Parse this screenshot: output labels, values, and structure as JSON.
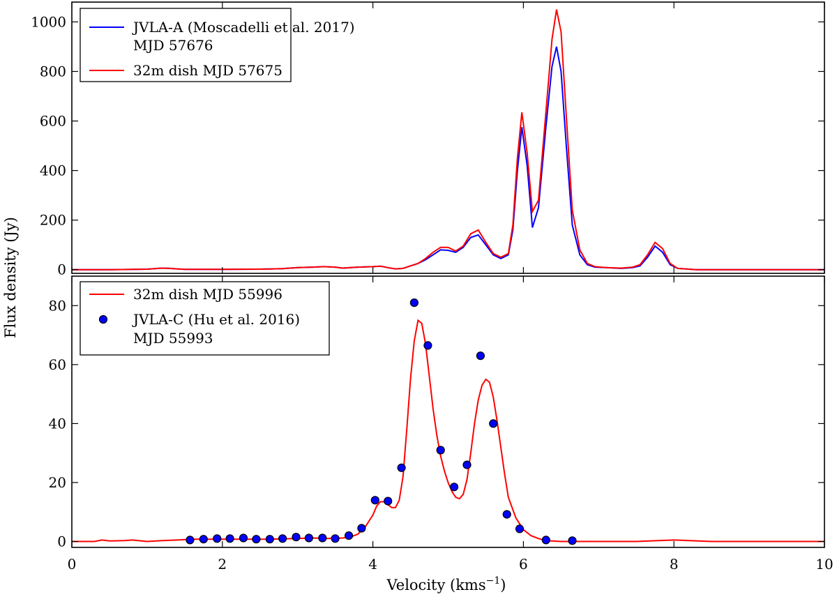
{
  "chart_data": [
    {
      "type": "line",
      "panel": "top",
      "xlim": [
        0,
        10
      ],
      "ylim": [
        -15,
        1080
      ],
      "yticks": [
        0,
        200,
        400,
        600,
        800,
        1000
      ],
      "ylabel": "Flux density (Jy)",
      "legend_position": "top-left",
      "series": [
        {
          "name": "JVLA-A (Moscadelli et al. 2017)",
          "name_line2": "MJD 57676",
          "color": "#0000ff",
          "marker": "line",
          "x": [
            0,
            0.5,
            1.0,
            1.1,
            1.2,
            1.3,
            1.4,
            1.5,
            2.0,
            2.5,
            2.8,
            3.0,
            3.2,
            3.35,
            3.5,
            3.6,
            3.8,
            4.0,
            4.1,
            4.2,
            4.3,
            4.4,
            4.5,
            4.6,
            4.7,
            4.8,
            4.9,
            5.0,
            5.1,
            5.2,
            5.3,
            5.4,
            5.5,
            5.6,
            5.7,
            5.8,
            5.86,
            5.92,
            5.98,
            6.05,
            6.12,
            6.2,
            6.3,
            6.38,
            6.44,
            6.5,
            6.57,
            6.65,
            6.75,
            6.85,
            6.95,
            7.1,
            7.3,
            7.45,
            7.55,
            7.65,
            7.75,
            7.85,
            7.95,
            8.05,
            8.3,
            9.0,
            10.0
          ],
          "y": [
            0,
            0,
            2,
            4,
            6,
            5,
            3,
            1,
            1,
            2,
            4,
            8,
            10,
            12,
            10,
            6,
            10,
            12,
            14,
            8,
            3,
            5,
            15,
            25,
            40,
            60,
            80,
            78,
            70,
            90,
            130,
            140,
            100,
            60,
            45,
            60,
            160,
            400,
            575,
            420,
            170,
            250,
            580,
            820,
            900,
            800,
            500,
            180,
            60,
            20,
            10,
            8,
            5,
            8,
            15,
            50,
            95,
            70,
            20,
            5,
            0,
            0,
            0
          ]
        },
        {
          "name": "32m dish MJD 57675",
          "color": "#ff0000",
          "marker": "line",
          "x": [
            0,
            0.5,
            1.0,
            1.1,
            1.2,
            1.3,
            1.4,
            1.5,
            2.0,
            2.5,
            2.8,
            3.0,
            3.2,
            3.35,
            3.5,
            3.6,
            3.8,
            4.0,
            4.1,
            4.2,
            4.3,
            4.4,
            4.5,
            4.6,
            4.7,
            4.8,
            4.9,
            5.0,
            5.1,
            5.2,
            5.3,
            5.4,
            5.5,
            5.6,
            5.7,
            5.8,
            5.86,
            5.92,
            5.98,
            6.05,
            6.12,
            6.2,
            6.3,
            6.38,
            6.44,
            6.5,
            6.57,
            6.65,
            6.75,
            6.85,
            6.95,
            7.1,
            7.3,
            7.45,
            7.55,
            7.65,
            7.75,
            7.85,
            7.95,
            8.05,
            8.3,
            9.0,
            10.0
          ],
          "y": [
            0,
            0,
            2,
            4,
            6,
            5,
            3,
            1,
            1,
            2,
            4,
            8,
            10,
            12,
            10,
            6,
            10,
            12,
            14,
            8,
            3,
            5,
            15,
            25,
            45,
            70,
            90,
            90,
            75,
            95,
            145,
            160,
            110,
            65,
            50,
            65,
            180,
            450,
            635,
            470,
            235,
            280,
            640,
            930,
            1050,
            960,
            620,
            240,
            80,
            25,
            12,
            8,
            6,
            10,
            20,
            60,
            110,
            85,
            25,
            5,
            0,
            0,
            0
          ]
        }
      ]
    },
    {
      "type": "line+scatter",
      "panel": "bottom",
      "xlim": [
        0,
        10
      ],
      "ylim": [
        -2,
        90
      ],
      "xticks": [
        0,
        2,
        4,
        6,
        8,
        10
      ],
      "yticks": [
        0,
        20,
        40,
        60,
        80
      ],
      "xlabel": "Velocity (kms",
      "xlabel_sup": "−1",
      "xlabel_tail": ")",
      "legend_position": "top-left",
      "series": [
        {
          "name": "32m dish MJD 55996",
          "color": "#ff0000",
          "marker": "line",
          "x": [
            0,
            0.3,
            0.4,
            0.5,
            0.7,
            0.8,
            1.0,
            1.2,
            1.4,
            1.6,
            1.8,
            2.0,
            2.2,
            2.4,
            2.6,
            2.8,
            3.0,
            3.2,
            3.4,
            3.6,
            3.7,
            3.8,
            3.9,
            4.0,
            4.05,
            4.1,
            4.15,
            4.2,
            4.25,
            4.3,
            4.35,
            4.4,
            4.45,
            4.5,
            4.55,
            4.6,
            4.65,
            4.7,
            4.75,
            4.8,
            4.85,
            4.9,
            4.95,
            5.0,
            5.05,
            5.1,
            5.15,
            5.2,
            5.25,
            5.3,
            5.35,
            5.4,
            5.45,
            5.5,
            5.55,
            5.6,
            5.65,
            5.7,
            5.75,
            5.8,
            5.9,
            6.0,
            6.1,
            6.2,
            6.3,
            6.5,
            7.0,
            7.5,
            8.0,
            8.5,
            9.0,
            9.5,
            10.0
          ],
          "y": [
            0,
            0,
            0.5,
            0.2,
            0.3,
            0.5,
            0,
            0.3,
            0.5,
            0.8,
            0.8,
            0.8,
            0.8,
            0.8,
            0.8,
            0.9,
            1.0,
            1.2,
            1.0,
            1.2,
            1.5,
            2.5,
            5,
            9,
            12,
            13.5,
            13.5,
            12.5,
            11.5,
            11.5,
            14,
            22,
            38,
            55,
            68,
            75,
            74,
            67,
            56,
            45,
            36,
            29,
            24,
            20,
            17,
            15,
            14.5,
            16,
            21,
            30,
            40,
            48,
            53,
            55,
            54,
            49,
            41,
            32,
            23,
            15,
            8,
            4,
            2,
            1,
            0.3,
            0,
            0,
            0,
            0.5,
            0,
            0,
            0,
            0
          ]
        },
        {
          "name": "JVLA-C (Hu et al. 2016)",
          "name_line2": "MJD 55993",
          "color": "#0000ff",
          "marker": "circle",
          "x": [
            1.57,
            1.75,
            1.93,
            2.1,
            2.28,
            2.45,
            2.63,
            2.8,
            2.98,
            3.15,
            3.33,
            3.5,
            3.68,
            3.85,
            4.03,
            4.2,
            4.38,
            4.55,
            4.73,
            4.9,
            5.08,
            5.25,
            5.43,
            5.6,
            5.78,
            5.95,
            6.3,
            6.65
          ],
          "y": [
            0.5,
            0.8,
            1.0,
            1.0,
            1.2,
            0.8,
            0.8,
            1.0,
            1.5,
            1.2,
            1.2,
            1.0,
            2.0,
            4.5,
            14,
            13.7,
            25,
            81,
            66.5,
            31,
            18.5,
            26,
            63,
            40,
            9.2,
            4.3,
            0.5,
            0.3
          ]
        }
      ]
    }
  ]
}
